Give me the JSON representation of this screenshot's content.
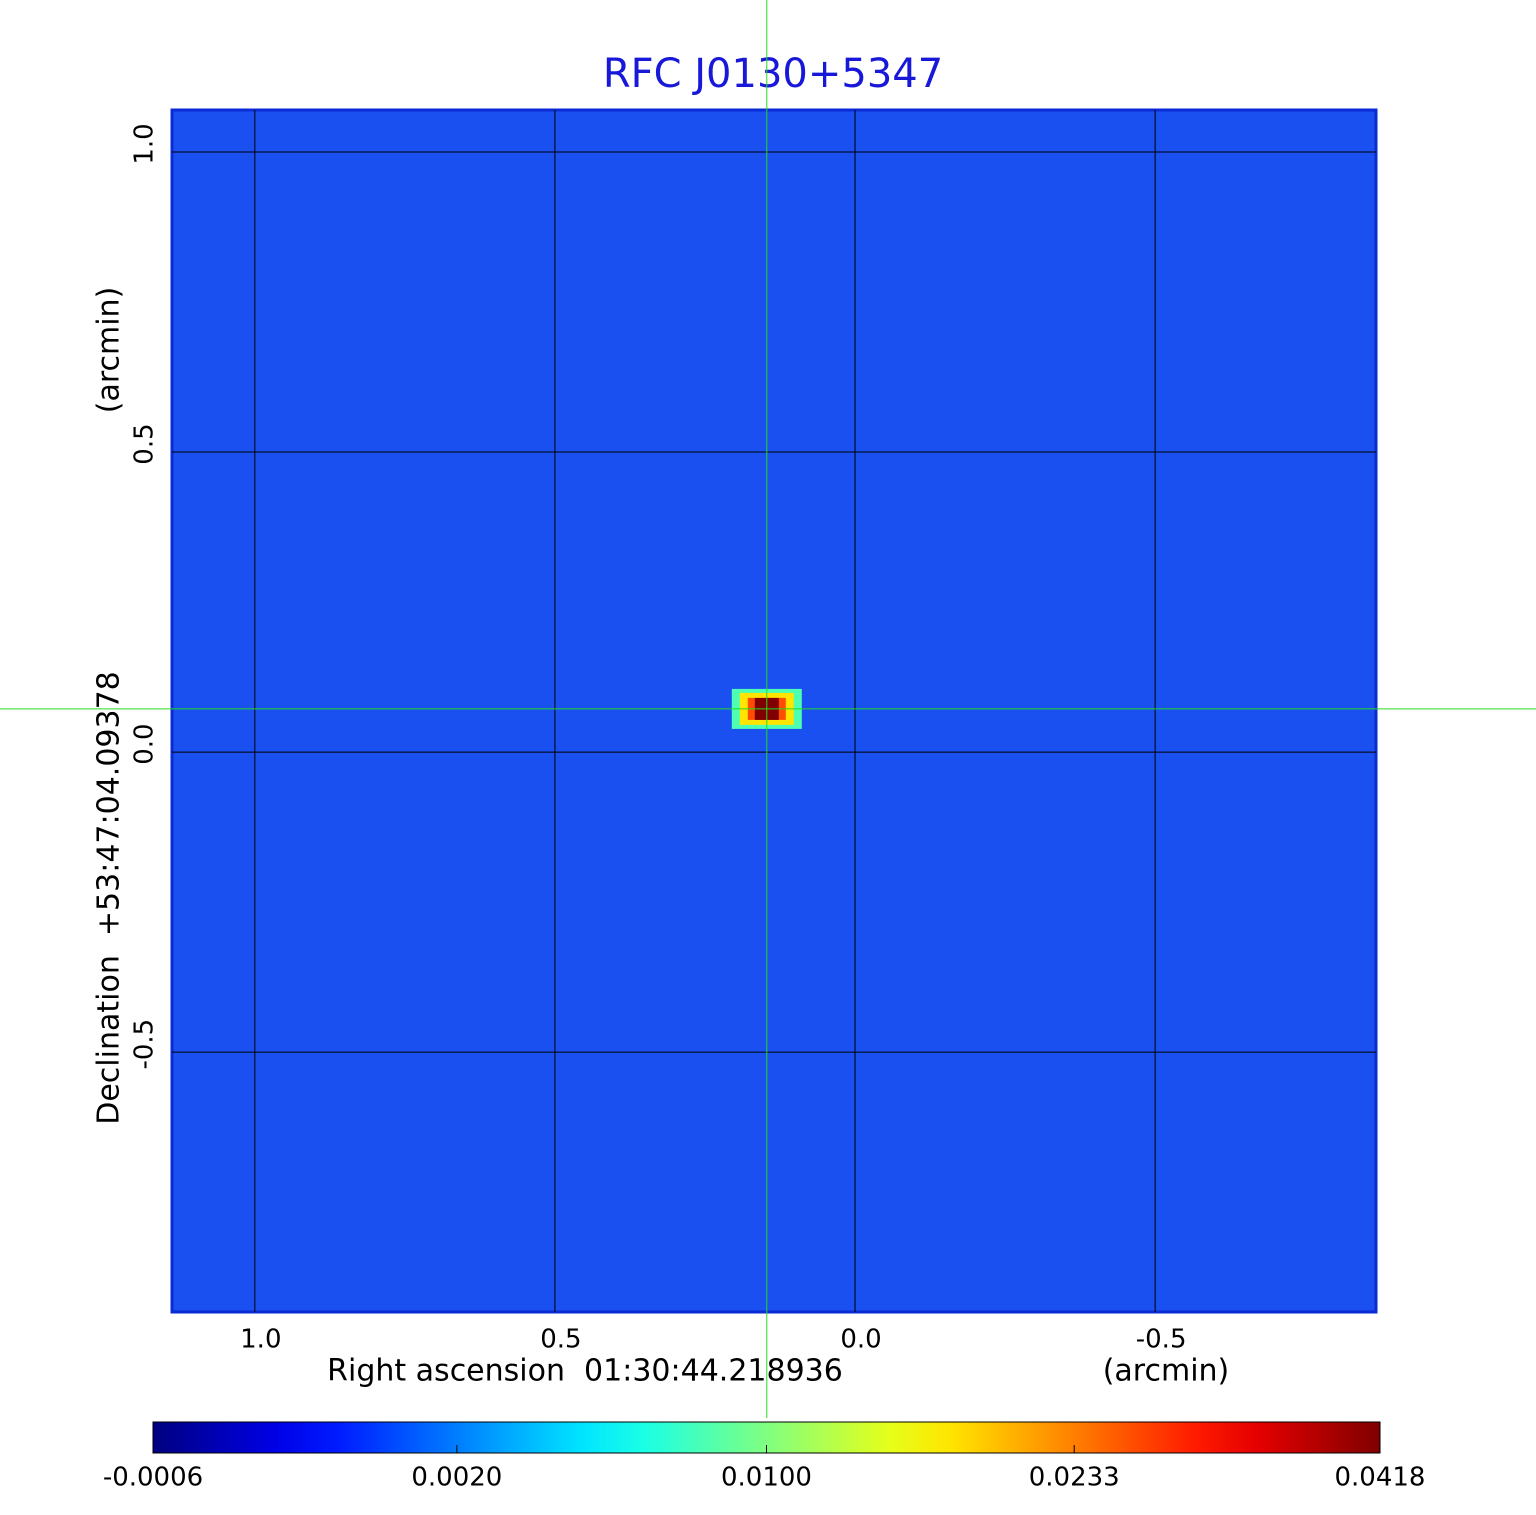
{
  "chart_data": {
    "type": "image",
    "title": "RFC J0130+5347",
    "xlabel": "Right ascension  01:30:44.218936",
    "xunit": "(arcmin)",
    "ylabel": "Declination  +53:47:04.09378",
    "yunit": "(arcmin)",
    "xlim": [
      1.138,
      -0.868
    ],
    "ylim": [
      -0.933,
      1.07
    ],
    "xticks": [
      {
        "value": 1,
        "label": "1.0"
      },
      0.5,
      {
        "value": 0,
        "label": "0.0"
      },
      -0.5
    ],
    "yticks": [
      -0.5,
      {
        "value": 0,
        "label": "0.0"
      },
      0.5,
      {
        "value": 1,
        "label": "1.0"
      }
    ],
    "grid": true,
    "colormap": "jet",
    "cscale": "sqrt",
    "clim": [
      -0.0006,
      0.0418
    ],
    "cticks": [
      -0.0006,
      {
        "value": 0.002,
        "label": "0.0020"
      },
      {
        "value": 0.01,
        "label": "0.0100"
      },
      0.0233,
      0.0418
    ],
    "source": {
      "x": 0.147,
      "y": 0.072,
      "peak": 0.0418
    }
  }
}
